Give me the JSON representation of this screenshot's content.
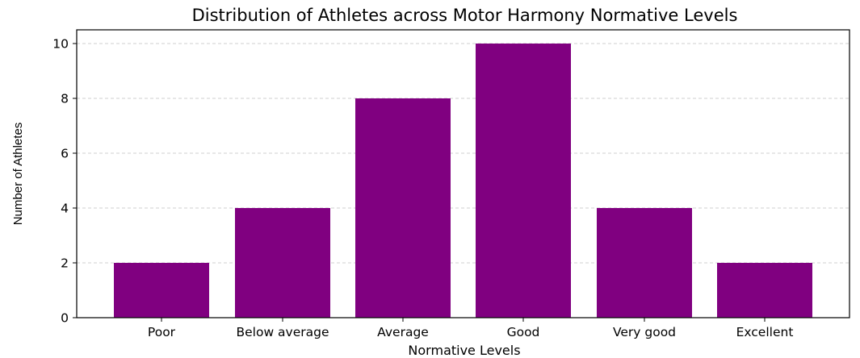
{
  "chart_data": {
    "type": "bar",
    "title": "Distribution of Athletes across Motor Harmony Normative Levels",
    "xlabel": "Normative Levels",
    "ylabel": "Number of Athletes",
    "categories": [
      "Poor",
      "Below average",
      "Average",
      "Good",
      "Very good",
      "Excellent"
    ],
    "values": [
      2,
      4,
      8,
      10,
      4,
      2
    ],
    "ylim": [
      0,
      10.5
    ],
    "yticks": [
      "0",
      "2",
      "4",
      "6",
      "8",
      "10"
    ],
    "bar_color": "#800080",
    "grid": "horizontal dashed",
    "legend": "none"
  }
}
